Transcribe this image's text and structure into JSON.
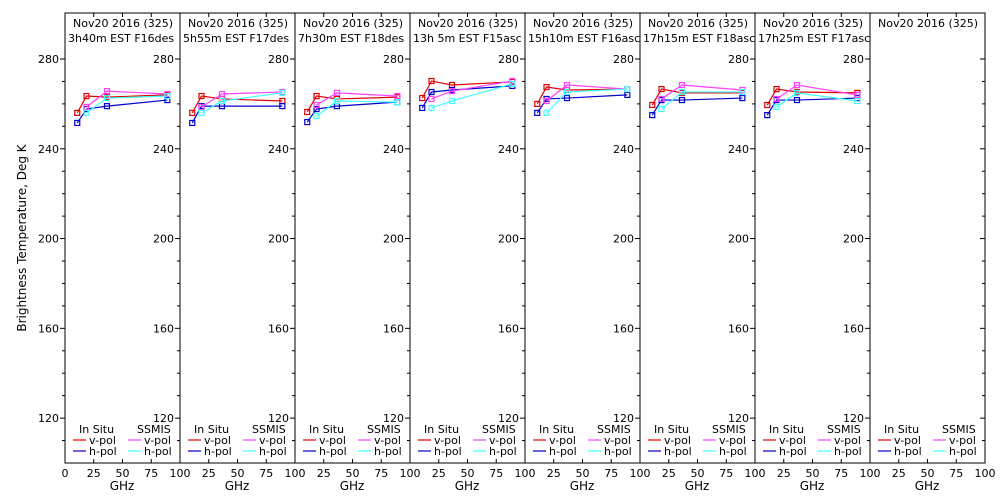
{
  "chart_data": {
    "type": "line",
    "ylabel": "Brightness Temperature, Deg K",
    "xlabel": "GHz",
    "ylim": [
      100,
      290
    ],
    "xlim": [
      0,
      100
    ],
    "yticks": [
      120,
      160,
      200,
      240,
      280
    ],
    "yminor_step": 10,
    "xticks": [
      0,
      25,
      50,
      75,
      100
    ],
    "x_tick_labels_first_panel": [
      "0",
      "25",
      "50",
      "75",
      "100"
    ],
    "x_tick_labels_other_panels": [
      "25",
      "50",
      "75",
      "100"
    ],
    "frequencies_ghz": [
      10.65,
      18.7,
      36.5,
      89.0
    ],
    "legend": {
      "group_in_situ": "In Situ",
      "group_ssmis": "SSMIS",
      "vpol": "v-pol",
      "hpol": "h-pol",
      "placement": "bottom"
    },
    "colors": {
      "insitu_v": "#e00000",
      "insitu_h": "#0000d0",
      "ssmis_v": "#ff40ff",
      "ssmis_h": "#40ffff"
    },
    "panels": [
      {
        "title1": "Nov20 2016 (325)",
        "title2": "3h40m EST F16des",
        "series": [
          {
            "name": "In Situ v-pol",
            "key": "insitu_v",
            "x": [
              10.65,
              18.7,
              36.5,
              89.0
            ],
            "values": [
              256.0,
              263.5,
              263.0,
              264.0
            ]
          },
          {
            "name": "In Situ h-pol",
            "key": "insitu_h",
            "x": [
              10.65,
              18.7,
              36.5,
              89.0
            ],
            "values": [
              251.5,
              257.7,
              259.0,
              261.7
            ]
          },
          {
            "name": "SSMIS v-pol",
            "key": "ssmis_v",
            "x": [
              18.7,
              36.5,
              89.0
            ],
            "values": [
              258.6,
              265.7,
              264.4
            ]
          },
          {
            "name": "SSMIS h-pol",
            "key": "ssmis_h",
            "x": [
              18.7,
              36.5,
              89.0
            ],
            "values": [
              256.0,
              262.6,
              263.5
            ]
          }
        ]
      },
      {
        "title1": "Nov20 2016 (325)",
        "title2": "5h55m EST F17des",
        "series": [
          {
            "name": "In Situ v-pol",
            "key": "insitu_v",
            "x": [
              10.65,
              18.7,
              36.5,
              89.0
            ],
            "values": [
              256.0,
              263.5,
              262.2,
              261.3
            ]
          },
          {
            "name": "In Situ h-pol",
            "key": "insitu_h",
            "x": [
              10.65,
              18.7,
              36.5,
              89.0
            ],
            "values": [
              251.5,
              259.0,
              259.0,
              259.0
            ]
          },
          {
            "name": "SSMIS v-pol",
            "key": "ssmis_v",
            "x": [
              18.7,
              36.5,
              89.0
            ],
            "values": [
              258.6,
              264.4,
              265.3
            ]
          },
          {
            "name": "SSMIS h-pol",
            "key": "ssmis_h",
            "x": [
              18.7,
              36.5,
              89.0
            ],
            "values": [
              256.0,
              261.3,
              264.9
            ]
          }
        ]
      },
      {
        "title1": "Nov20 2016 (325)",
        "title2": "7h30m EST F18des",
        "series": [
          {
            "name": "In Situ v-pol",
            "key": "insitu_v",
            "x": [
              10.65,
              18.7,
              36.5,
              89.0
            ],
            "values": [
              256.4,
              263.5,
              262.2,
              263.0
            ]
          },
          {
            "name": "In Situ h-pol",
            "key": "insitu_h",
            "x": [
              10.65,
              18.7,
              36.5,
              89.0
            ],
            "values": [
              251.9,
              257.7,
              259.0,
              260.8
            ]
          },
          {
            "name": "SSMIS v-pol",
            "key": "ssmis_v",
            "x": [
              18.7,
              36.5,
              89.0
            ],
            "values": [
              259.5,
              264.9,
              263.5
            ]
          },
          {
            "name": "SSMIS h-pol",
            "key": "ssmis_h",
            "x": [
              18.7,
              36.5,
              89.0
            ],
            "values": [
              254.6,
              261.3,
              260.8
            ]
          }
        ]
      },
      {
        "title1": "Nov20 2016 (325)",
        "title2": "13h 5m EST F15asc",
        "series": [
          {
            "name": "In Situ v-pol",
            "key": "insitu_v",
            "x": [
              10.65,
              18.7,
              36.5,
              89.0
            ],
            "values": [
              262.6,
              270.2,
              268.4,
              269.8
            ]
          },
          {
            "name": "In Situ h-pol",
            "key": "insitu_h",
            "x": [
              10.65,
              18.7,
              36.5,
              89.0
            ],
            "values": [
              258.2,
              265.3,
              266.2,
              268.0
            ]
          },
          {
            "name": "SSMIS v-pol",
            "key": "ssmis_v",
            "x": [
              18.7,
              36.5,
              89.0
            ],
            "values": [
              262.2,
              265.7,
              270.2
            ]
          },
          {
            "name": "SSMIS h-pol",
            "key": "ssmis_h",
            "x": [
              18.7,
              36.5,
              89.0
            ],
            "values": [
              258.2,
              261.3,
              268.9
            ]
          }
        ]
      },
      {
        "title1": "Nov20 2016 (325)",
        "title2": "15h10m EST F16asc",
        "series": [
          {
            "name": "In Situ v-pol",
            "key": "insitu_v",
            "x": [
              10.65,
              18.7,
              36.5,
              89.0
            ],
            "values": [
              260.0,
              267.5,
              266.2,
              266.6
            ]
          },
          {
            "name": "In Situ h-pol",
            "key": "insitu_h",
            "x": [
              10.65,
              18.7,
              36.5,
              89.0
            ],
            "values": [
              256.0,
              262.2,
              262.6,
              264.0
            ]
          },
          {
            "name": "SSMIS v-pol",
            "key": "ssmis_v",
            "x": [
              18.7,
              36.5,
              89.0
            ],
            "values": [
              261.3,
              268.4,
              266.6
            ]
          },
          {
            "name": "SSMIS h-pol",
            "key": "ssmis_h",
            "x": [
              18.7,
              36.5,
              89.0
            ],
            "values": [
              256.0,
              265.3,
              266.6
            ]
          }
        ]
      },
      {
        "title1": "Nov20 2016 (325)",
        "title2": "17h15m EST F18asc",
        "series": [
          {
            "name": "In Situ v-pol",
            "key": "insitu_v",
            "x": [
              10.65,
              18.7,
              36.5,
              89.0
            ],
            "values": [
              259.5,
              266.6,
              264.9,
              264.9
            ]
          },
          {
            "name": "In Situ h-pol",
            "key": "insitu_h",
            "x": [
              10.65,
              18.7,
              36.5,
              89.0
            ],
            "values": [
              255.0,
              261.7,
              261.7,
              262.6
            ]
          },
          {
            "name": "SSMIS v-pol",
            "key": "ssmis_v",
            "x": [
              18.7,
              36.5,
              89.0
            ],
            "values": [
              262.2,
              268.4,
              266.2
            ]
          },
          {
            "name": "SSMIS h-pol",
            "key": "ssmis_h",
            "x": [
              18.7,
              36.5,
              89.0
            ],
            "values": [
              257.7,
              265.3,
              265.3
            ]
          }
        ]
      },
      {
        "title1": "Nov20 2016 (325)",
        "title2": "17h25m EST F17asc",
        "series": [
          {
            "name": "In Situ v-pol",
            "key": "insitu_v",
            "x": [
              10.65,
              18.7,
              36.5,
              89.0
            ],
            "values": [
              259.5,
              266.6,
              265.3,
              264.9
            ]
          },
          {
            "name": "In Situ h-pol",
            "key": "insitu_h",
            "x": [
              10.65,
              18.7,
              36.5,
              89.0
            ],
            "values": [
              255.0,
              261.7,
              261.7,
              262.6
            ]
          },
          {
            "name": "SSMIS v-pol",
            "key": "ssmis_v",
            "x": [
              18.7,
              36.5,
              89.0
            ],
            "values": [
              262.2,
              268.4,
              264.0
            ]
          },
          {
            "name": "SSMIS h-pol",
            "key": "ssmis_h",
            "x": [
              18.7,
              36.5,
              89.0
            ],
            "values": [
              258.6,
              264.9,
              261.3
            ]
          }
        ]
      },
      {
        "title1": "Nov20 2016 (325)",
        "title2": "",
        "series": []
      }
    ]
  }
}
